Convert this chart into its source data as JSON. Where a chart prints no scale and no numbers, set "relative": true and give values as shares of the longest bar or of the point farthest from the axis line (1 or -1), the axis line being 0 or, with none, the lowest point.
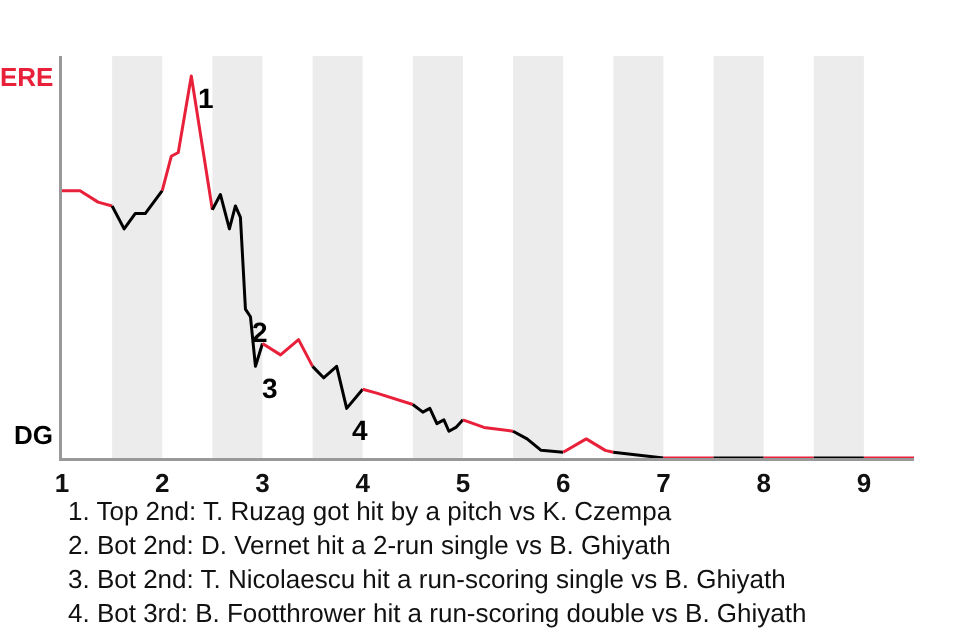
{
  "chart_data": {
    "type": "line",
    "relative": true,
    "xlim": [
      1,
      9.5
    ],
    "xticks": [
      1,
      2,
      3,
      4,
      5,
      6,
      7,
      8,
      9
    ],
    "marker": "none",
    "line_style": "solid",
    "series": [
      {
        "color": "#e8203a",
        "x": [
          1.0,
          1.18,
          1.36,
          1.5
        ],
        "values": [
          0.7,
          0.7,
          0.67,
          0.66
        ]
      },
      {
        "color": "#000000",
        "x": [
          1.5,
          1.62,
          1.73,
          1.83,
          2.0
        ],
        "values": [
          0.66,
          0.6,
          0.64,
          0.64,
          0.7
        ]
      },
      {
        "color": "#e8203a",
        "x": [
          2.0,
          2.09,
          2.16,
          2.29,
          2.5
        ],
        "values": [
          0.7,
          0.79,
          0.8,
          1,
          0.65
        ]
      },
      {
        "color": "#000000",
        "x": [
          2.5,
          2.58,
          2.67,
          2.73,
          2.78,
          2.83,
          2.88,
          2.93,
          3.0
        ],
        "values": [
          0.65,
          0.69,
          0.6,
          0.66,
          0.63,
          0.39,
          0.37,
          0.24,
          0.3
        ]
      },
      {
        "color": "#e8203a",
        "x": [
          3.0,
          3.18,
          3.36,
          3.5
        ],
        "values": [
          0.3,
          0.27,
          0.31,
          0.24
        ]
      },
      {
        "color": "#000000",
        "x": [
          3.5,
          3.61,
          3.74,
          3.84,
          4.0
        ],
        "values": [
          0.24,
          0.21,
          0.24,
          0.13,
          0.18
        ]
      },
      {
        "color": "#e8203a",
        "x": [
          4.0,
          4.14,
          4.5
        ],
        "values": [
          0.18,
          0.17,
          0.14
        ]
      },
      {
        "color": "#000000",
        "x": [
          4.5,
          4.6,
          4.67,
          4.74,
          4.81,
          4.86,
          4.93,
          5.0
        ],
        "values": [
          0.14,
          0.12,
          0.13,
          0.09,
          0.1,
          0.07,
          0.08,
          0.1
        ]
      },
      {
        "color": "#e8203a",
        "x": [
          5.0,
          5.21,
          5.5
        ],
        "values": [
          0.1,
          0.08,
          0.07
        ]
      },
      {
        "color": "#000000",
        "x": [
          5.5,
          5.64,
          5.78,
          6.0
        ],
        "values": [
          0.07,
          0.05,
          0.02,
          0.015
        ]
      },
      {
        "color": "#e8203a",
        "x": [
          6.0,
          6.23,
          6.42,
          6.5
        ],
        "values": [
          0.015,
          0.05,
          0.02,
          0.015
        ]
      },
      {
        "color": "#000000",
        "x": [
          6.5,
          7.0
        ],
        "values": [
          0.015,
          0
        ]
      },
      {
        "color": "#e8203a",
        "x": [
          7.0,
          7.5
        ],
        "values": [
          0,
          0
        ]
      },
      {
        "color": "#000000",
        "x": [
          7.5,
          8.0
        ],
        "values": [
          0,
          0
        ]
      },
      {
        "color": "#e8203a",
        "x": [
          8.0,
          8.5
        ],
        "values": [
          0,
          0
        ]
      },
      {
        "color": "#000000",
        "x": [
          8.5,
          9.0
        ],
        "values": [
          0,
          0
        ]
      },
      {
        "color": "#e8203a",
        "x": [
          9.0,
          9.5
        ],
        "values": [
          0,
          0
        ]
      }
    ],
    "bands": [
      {
        "axis": "x",
        "from": 1.5,
        "to": 2,
        "color": "#ececec"
      },
      {
        "axis": "x",
        "from": 2.5,
        "to": 3,
        "color": "#ececec"
      },
      {
        "axis": "x",
        "from": 3.5,
        "to": 4,
        "color": "#ececec"
      },
      {
        "axis": "x",
        "from": 4.5,
        "to": 5,
        "color": "#ececec"
      },
      {
        "axis": "x",
        "from": 5.5,
        "to": 6,
        "color": "#ececec"
      },
      {
        "axis": "x",
        "from": 6.5,
        "to": 7,
        "color": "#ececec"
      },
      {
        "axis": "x",
        "from": 7.5,
        "to": 8,
        "color": "#ececec"
      },
      {
        "axis": "x",
        "from": 8.5,
        "to": 9,
        "color": "#ececec"
      }
    ],
    "annotations": [
      "ERE",
      "DG",
      {
        "text": "1",
        "x": 2.29,
        "y": 1
      },
      {
        "text": "2",
        "x": 2.83,
        "y": 0.39
      },
      {
        "text": "3",
        "x": 2.93,
        "y": 0.24
      },
      {
        "text": "4",
        "x": 3.84,
        "y": 0.13
      },
      "1. Top 2nd: T. Ruzag got hit by a pitch vs K. Czempa",
      "2. Bot 2nd: D. Vernet hit a 2-run single vs B. Ghiyath",
      "3. Bot 2nd: T. Nicolaescu hit a run-scoring single vs B. Ghiyath",
      "4. Bot 3rd: B. Footthrower hit a run-scoring double vs B. Ghiyath"
    ]
  }
}
